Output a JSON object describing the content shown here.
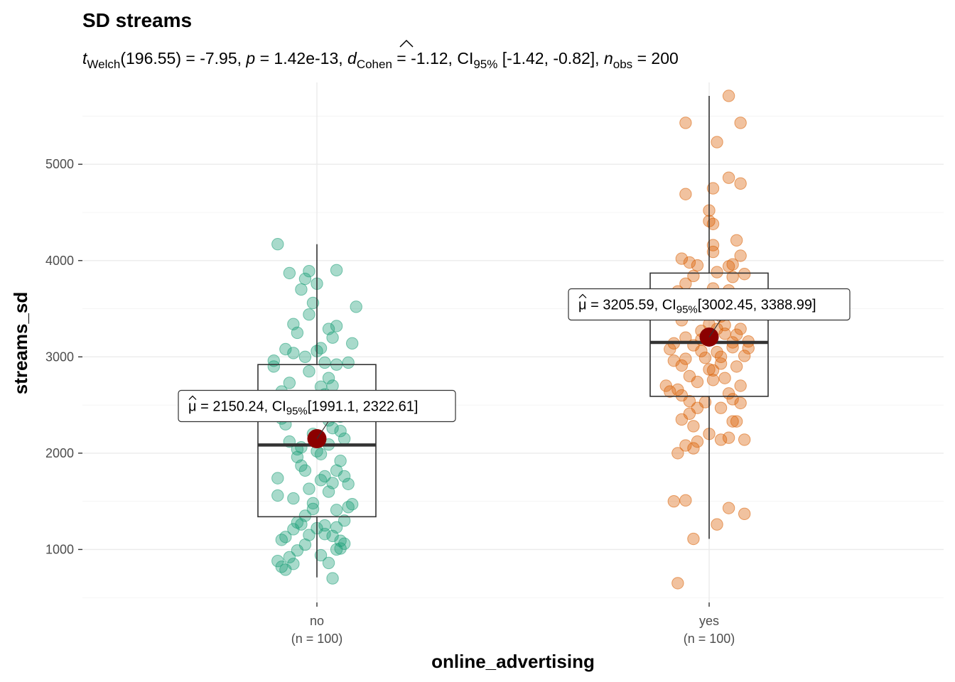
{
  "chart_data": {
    "type": "box_violin_scatter",
    "title": "SD streams",
    "subtitle_parts": {
      "t_symbol": "t",
      "t_sub": "Welch",
      "t_df": "(196.55) = -7.95, ",
      "p_symbol": "p",
      "p_value": " = 1.42e-13, ",
      "d_symbol": "d",
      "d_sub": "Cohen",
      "d_value": " = -1.12, CI",
      "ci_sub": "95%",
      "ci_value": " [-1.42, -0.82], ",
      "n_symbol": "n",
      "n_sub": "obs",
      "n_value": " = 200"
    },
    "xlabel": "online_advertising",
    "ylabel": "streams_sd",
    "ylim": [
      450,
      5850
    ],
    "y_ticks": [
      1000,
      2000,
      3000,
      4000,
      5000
    ],
    "y_tick_labels": [
      "1000",
      "2000",
      "3000",
      "4000",
      "5000"
    ],
    "grid": true,
    "groups": [
      {
        "category": "no",
        "n_label": "(n = 100)",
        "color": "#1b9e77",
        "box": {
          "q1": 1340,
          "median": 2085,
          "q3": 2920,
          "whisker_low": 710,
          "whisker_high": 4170
        },
        "mean": 2150.24,
        "mean_label": {
          "mu": "μ",
          "text": " = 2150.24, CI",
          "ci_sub": "95%",
          "ci": "[1991.1, 2322.61]"
        },
        "points": [
          [
            -0.1,
            4170
          ],
          [
            0.05,
            3900
          ],
          [
            -0.02,
            3890
          ],
          [
            -0.07,
            3870
          ],
          [
            0.1,
            3520
          ],
          [
            -0.03,
            3810
          ],
          [
            -0.04,
            3700
          ],
          [
            -0.01,
            3560
          ],
          [
            -0.02,
            3440
          ],
          [
            0.05,
            3320
          ],
          [
            0.03,
            3290
          ],
          [
            0.04,
            3200
          ],
          [
            -0.05,
            3250
          ],
          [
            0.01,
            3090
          ],
          [
            -0.08,
            3080
          ],
          [
            -0.06,
            3040
          ],
          [
            0.0,
            3060
          ],
          [
            -0.03,
            3000
          ],
          [
            0.02,
            2940
          ],
          [
            0.08,
            2940
          ],
          [
            0.05,
            2920
          ],
          [
            -0.11,
            2960
          ],
          [
            -0.02,
            2850
          ],
          [
            0.03,
            2780
          ],
          [
            -0.09,
            2640
          ],
          [
            0.01,
            2690
          ],
          [
            -0.06,
            2580
          ],
          [
            -0.04,
            2470
          ],
          [
            0.02,
            2430
          ],
          [
            0.06,
            2380
          ],
          [
            0.04,
            2260
          ],
          [
            -0.01,
            2200
          ],
          [
            -0.07,
            2120
          ],
          [
            0.03,
            2090
          ],
          [
            0.0,
            2020
          ],
          [
            -0.05,
            1960
          ],
          [
            0.06,
            1920
          ],
          [
            -0.04,
            1870
          ],
          [
            -0.03,
            1820
          ],
          [
            0.02,
            1760
          ],
          [
            0.07,
            1760
          ],
          [
            -0.1,
            1740
          ],
          [
            0.01,
            1720
          ],
          [
            0.04,
            1690
          ],
          [
            0.08,
            1680
          ],
          [
            -0.02,
            1630
          ],
          [
            0.03,
            1600
          ],
          [
            -0.06,
            1530
          ],
          [
            0.08,
            1440
          ],
          [
            -0.01,
            1420
          ],
          [
            0.05,
            1410
          ],
          [
            -0.03,
            1350
          ],
          [
            0.07,
            1300
          ],
          [
            -0.05,
            1280
          ],
          [
            0.02,
            1250
          ],
          [
            -0.06,
            1210
          ],
          [
            -0.04,
            1260
          ],
          [
            0.0,
            1220
          ],
          [
            -0.08,
            1130
          ],
          [
            -0.09,
            1100
          ],
          [
            0.04,
            1140
          ],
          [
            0.06,
            1090
          ],
          [
            0.07,
            1060
          ],
          [
            0.05,
            1000
          ],
          [
            -0.05,
            990
          ],
          [
            0.06,
            1010
          ],
          [
            -0.07,
            920
          ],
          [
            0.01,
            940
          ],
          [
            -0.1,
            880
          ],
          [
            -0.09,
            820
          ],
          [
            -0.08,
            790
          ],
          [
            -0.06,
            850
          ],
          [
            0.04,
            700
          ],
          [
            -0.03,
            1050
          ],
          [
            0.02,
            1160
          ],
          [
            -0.01,
            1480
          ],
          [
            0.05,
            1230
          ],
          [
            -0.02,
            2560
          ],
          [
            0.03,
            2490
          ],
          [
            -0.08,
            2300
          ],
          [
            0.06,
            2230
          ],
          [
            -0.04,
            2060
          ],
          [
            0.01,
            1990
          ],
          [
            0.07,
            2150
          ],
          [
            -0.11,
            2900
          ],
          [
            0.09,
            3140
          ],
          [
            -0.06,
            3340
          ],
          [
            0.0,
            3760
          ],
          [
            0.03,
            2340
          ],
          [
            -0.07,
            2730
          ],
          [
            0.02,
            2610
          ],
          [
            0.09,
            1470
          ],
          [
            -0.02,
            1150
          ],
          [
            0.03,
            860
          ],
          [
            -0.1,
            1560
          ],
          [
            0.05,
            1820
          ],
          [
            -0.05,
            2040
          ],
          [
            0.08,
            2470
          ],
          [
            -0.09,
            2360
          ],
          [
            0.04,
            2700
          ]
        ]
      },
      {
        "category": "yes",
        "n_label": "(n = 100)",
        "color": "#d95f02",
        "box": {
          "q1": 2590,
          "median": 3150,
          "q3": 3870,
          "whisker_low": 1110,
          "whisker_high": 5710
        },
        "mean": 3205.59,
        "mean_label": {
          "mu": "μ",
          "text": " = 3205.59, CI",
          "ci_sub": "95%",
          "ci": "[3002.45, 3388.99]"
        },
        "points": [
          [
            0.05,
            5710
          ],
          [
            -0.06,
            5430
          ],
          [
            0.08,
            5430
          ],
          [
            0.02,
            5230
          ],
          [
            0.05,
            4860
          ],
          [
            0.08,
            4800
          ],
          [
            0.01,
            4750
          ],
          [
            -0.06,
            4690
          ],
          [
            0.0,
            4520
          ],
          [
            0.0,
            4410
          ],
          [
            0.01,
            4380
          ],
          [
            0.07,
            4210
          ],
          [
            0.01,
            4160
          ],
          [
            0.01,
            4090
          ],
          [
            0.08,
            4050
          ],
          [
            -0.07,
            4020
          ],
          [
            0.06,
            3960
          ],
          [
            0.05,
            3940
          ],
          [
            -0.05,
            3980
          ],
          [
            -0.03,
            3950
          ],
          [
            0.02,
            3880
          ],
          [
            -0.04,
            3840
          ],
          [
            0.06,
            3830
          ],
          [
            0.09,
            3860
          ],
          [
            -0.06,
            3760
          ],
          [
            0.01,
            3710
          ],
          [
            -0.08,
            3680
          ],
          [
            0.05,
            3600
          ],
          [
            -0.03,
            3580
          ],
          [
            0.07,
            3550
          ],
          [
            -0.05,
            3470
          ],
          [
            0.03,
            3420
          ],
          [
            -0.07,
            3380
          ],
          [
            0.08,
            3290
          ],
          [
            -0.02,
            3270
          ],
          [
            0.04,
            3240
          ],
          [
            -0.06,
            3200
          ],
          [
            0.1,
            3160
          ],
          [
            -0.04,
            3120
          ],
          [
            0.06,
            3100
          ],
          [
            -0.1,
            3080
          ],
          [
            0.02,
            3050
          ],
          [
            -0.09,
            2960
          ],
          [
            0.07,
            2900
          ],
          [
            0.01,
            2860
          ],
          [
            -0.05,
            2800
          ],
          [
            0.04,
            2780
          ],
          [
            -0.03,
            2740
          ],
          [
            0.08,
            2700
          ],
          [
            -0.08,
            2660
          ],
          [
            0.05,
            2620
          ],
          [
            -0.07,
            2600
          ],
          [
            0.06,
            2560
          ],
          [
            -0.01,
            2530
          ],
          [
            0.03,
            2470
          ],
          [
            -0.05,
            2410
          ],
          [
            0.07,
            2330
          ],
          [
            -0.04,
            2280
          ],
          [
            0.0,
            2200
          ],
          [
            0.05,
            2160
          ],
          [
            0.03,
            2140
          ],
          [
            -0.03,
            2120
          ],
          [
            -0.06,
            2080
          ],
          [
            0.09,
            2140
          ],
          [
            -0.04,
            2050
          ],
          [
            -0.08,
            2000
          ],
          [
            -0.09,
            1500
          ],
          [
            -0.06,
            1510
          ],
          [
            0.05,
            1430
          ],
          [
            0.09,
            1370
          ],
          [
            0.02,
            1260
          ],
          [
            -0.04,
            1110
          ],
          [
            -0.08,
            650
          ],
          [
            -0.11,
            2700
          ],
          [
            0.1,
            3090
          ],
          [
            -0.02,
            3180
          ],
          [
            0.0,
            3340
          ],
          [
            0.04,
            3520
          ],
          [
            -0.07,
            2910
          ],
          [
            0.03,
            3000
          ],
          [
            -0.01,
            2990
          ],
          [
            0.08,
            2520
          ],
          [
            -0.1,
            2640
          ],
          [
            0.06,
            2330
          ],
          [
            -0.09,
            3140
          ],
          [
            0.02,
            3290
          ],
          [
            -0.03,
            2470
          ],
          [
            0.07,
            3230
          ],
          [
            -0.05,
            2540
          ],
          [
            0.01,
            2760
          ],
          [
            0.05,
            3690
          ],
          [
            -0.02,
            3060
          ],
          [
            0.09,
            3010
          ],
          [
            -0.06,
            2980
          ],
          [
            0.03,
            2930
          ],
          [
            -0.07,
            2350
          ],
          [
            0.04,
            3330
          ],
          [
            -0.04,
            3440
          ],
          [
            0.06,
            3150
          ],
          [
            0.0,
            2870
          ]
        ]
      }
    ]
  }
}
